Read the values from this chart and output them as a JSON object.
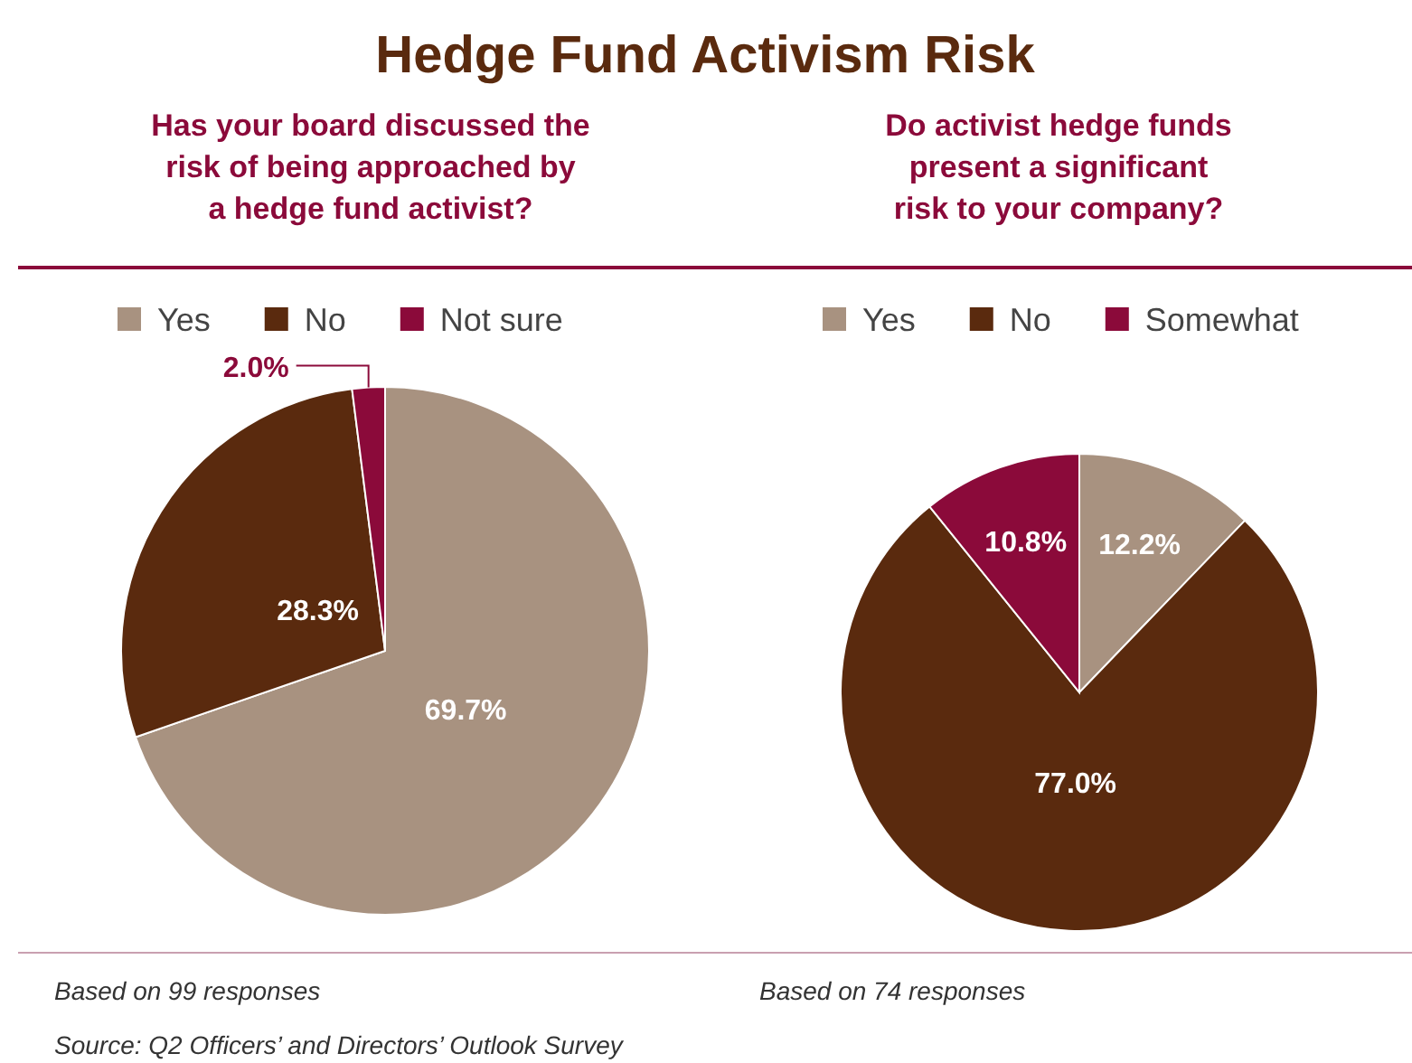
{
  "chart_data": [
    {
      "type": "pie",
      "title": "Hedge Fund Activism Risk",
      "subtitle": "Has your board discussed the risk of being approached by a hedge fund activist?",
      "categories": [
        "Yes",
        "No",
        "Not sure"
      ],
      "values": [
        69.7,
        28.3,
        2.0
      ],
      "value_labels": [
        "69.7%",
        "28.3%",
        "2.0%"
      ],
      "colors": [
        "#a89280",
        "#5a2a0e",
        "#8b0a3a"
      ],
      "legend": "top",
      "annotations": [
        "Based on 99 responses",
        "Source: Q2 Officers’ and Directors’ Outlook Survey"
      ]
    },
    {
      "type": "pie",
      "subtitle": "Do activist hedge funds present a significant risk to your company?",
      "categories": [
        "Yes",
        "No",
        "Somewhat"
      ],
      "values": [
        12.2,
        77.0,
        10.8
      ],
      "value_labels": [
        "12.2%",
        "77.0%",
        "10.8%"
      ],
      "colors": [
        "#a89280",
        "#5a2a0e",
        "#8b0a3a"
      ],
      "legend": "top",
      "annotations": [
        "Based on 74 responses"
      ]
    }
  ]
}
